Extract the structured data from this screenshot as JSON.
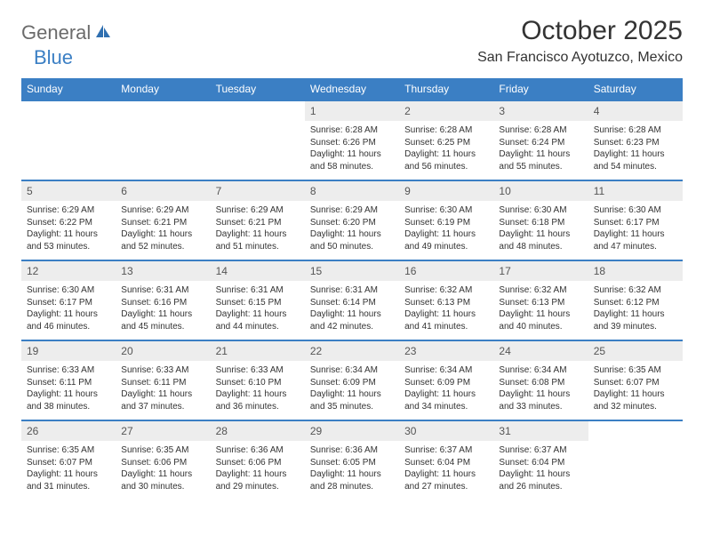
{
  "logo": {
    "part1": "General",
    "part2": "Blue"
  },
  "title": "October 2025",
  "location": "San Francisco Ayotuzco, Mexico",
  "header_bg": "#3b7fc4",
  "header_fg": "#ffffff",
  "daynum_bg": "#ededed",
  "border_color": "#3b7fc4",
  "days": [
    "Sunday",
    "Monday",
    "Tuesday",
    "Wednesday",
    "Thursday",
    "Friday",
    "Saturday"
  ],
  "weeks": [
    [
      null,
      null,
      null,
      {
        "n": "1",
        "sr": "6:28 AM",
        "ss": "6:26 PM",
        "dl": "11 hours and 58 minutes."
      },
      {
        "n": "2",
        "sr": "6:28 AM",
        "ss": "6:25 PM",
        "dl": "11 hours and 56 minutes."
      },
      {
        "n": "3",
        "sr": "6:28 AM",
        "ss": "6:24 PM",
        "dl": "11 hours and 55 minutes."
      },
      {
        "n": "4",
        "sr": "6:28 AM",
        "ss": "6:23 PM",
        "dl": "11 hours and 54 minutes."
      }
    ],
    [
      {
        "n": "5",
        "sr": "6:29 AM",
        "ss": "6:22 PM",
        "dl": "11 hours and 53 minutes."
      },
      {
        "n": "6",
        "sr": "6:29 AM",
        "ss": "6:21 PM",
        "dl": "11 hours and 52 minutes."
      },
      {
        "n": "7",
        "sr": "6:29 AM",
        "ss": "6:21 PM",
        "dl": "11 hours and 51 minutes."
      },
      {
        "n": "8",
        "sr": "6:29 AM",
        "ss": "6:20 PM",
        "dl": "11 hours and 50 minutes."
      },
      {
        "n": "9",
        "sr": "6:30 AM",
        "ss": "6:19 PM",
        "dl": "11 hours and 49 minutes."
      },
      {
        "n": "10",
        "sr": "6:30 AM",
        "ss": "6:18 PM",
        "dl": "11 hours and 48 minutes."
      },
      {
        "n": "11",
        "sr": "6:30 AM",
        "ss": "6:17 PM",
        "dl": "11 hours and 47 minutes."
      }
    ],
    [
      {
        "n": "12",
        "sr": "6:30 AM",
        "ss": "6:17 PM",
        "dl": "11 hours and 46 minutes."
      },
      {
        "n": "13",
        "sr": "6:31 AM",
        "ss": "6:16 PM",
        "dl": "11 hours and 45 minutes."
      },
      {
        "n": "14",
        "sr": "6:31 AM",
        "ss": "6:15 PM",
        "dl": "11 hours and 44 minutes."
      },
      {
        "n": "15",
        "sr": "6:31 AM",
        "ss": "6:14 PM",
        "dl": "11 hours and 42 minutes."
      },
      {
        "n": "16",
        "sr": "6:32 AM",
        "ss": "6:13 PM",
        "dl": "11 hours and 41 minutes."
      },
      {
        "n": "17",
        "sr": "6:32 AM",
        "ss": "6:13 PM",
        "dl": "11 hours and 40 minutes."
      },
      {
        "n": "18",
        "sr": "6:32 AM",
        "ss": "6:12 PM",
        "dl": "11 hours and 39 minutes."
      }
    ],
    [
      {
        "n": "19",
        "sr": "6:33 AM",
        "ss": "6:11 PM",
        "dl": "11 hours and 38 minutes."
      },
      {
        "n": "20",
        "sr": "6:33 AM",
        "ss": "6:11 PM",
        "dl": "11 hours and 37 minutes."
      },
      {
        "n": "21",
        "sr": "6:33 AM",
        "ss": "6:10 PM",
        "dl": "11 hours and 36 minutes."
      },
      {
        "n": "22",
        "sr": "6:34 AM",
        "ss": "6:09 PM",
        "dl": "11 hours and 35 minutes."
      },
      {
        "n": "23",
        "sr": "6:34 AM",
        "ss": "6:09 PM",
        "dl": "11 hours and 34 minutes."
      },
      {
        "n": "24",
        "sr": "6:34 AM",
        "ss": "6:08 PM",
        "dl": "11 hours and 33 minutes."
      },
      {
        "n": "25",
        "sr": "6:35 AM",
        "ss": "6:07 PM",
        "dl": "11 hours and 32 minutes."
      }
    ],
    [
      {
        "n": "26",
        "sr": "6:35 AM",
        "ss": "6:07 PM",
        "dl": "11 hours and 31 minutes."
      },
      {
        "n": "27",
        "sr": "6:35 AM",
        "ss": "6:06 PM",
        "dl": "11 hours and 30 minutes."
      },
      {
        "n": "28",
        "sr": "6:36 AM",
        "ss": "6:06 PM",
        "dl": "11 hours and 29 minutes."
      },
      {
        "n": "29",
        "sr": "6:36 AM",
        "ss": "6:05 PM",
        "dl": "11 hours and 28 minutes."
      },
      {
        "n": "30",
        "sr": "6:37 AM",
        "ss": "6:04 PM",
        "dl": "11 hours and 27 minutes."
      },
      {
        "n": "31",
        "sr": "6:37 AM",
        "ss": "6:04 PM",
        "dl": "11 hours and 26 minutes."
      },
      null
    ]
  ]
}
